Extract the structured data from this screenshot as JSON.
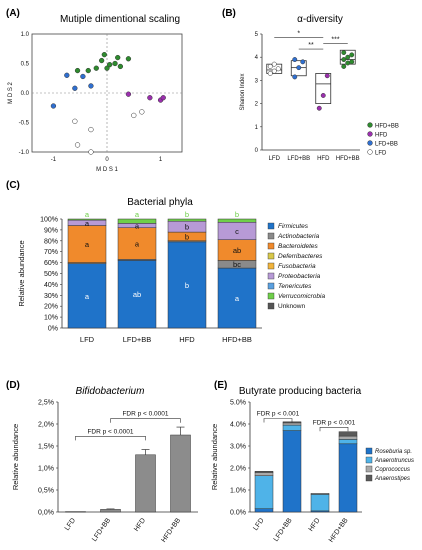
{
  "panels": {
    "A": {
      "label": "(A)",
      "title": "Mutiple dimentional scaling"
    },
    "B": {
      "label": "(B)",
      "title": "α-diversity"
    },
    "C": {
      "label": "(C)",
      "title": "Bacterial phyla"
    },
    "D": {
      "label": "(D)",
      "title": "Bifidobacterium"
    },
    "E": {
      "label": "(E)",
      "title": "Butyrate producing bacteria"
    }
  },
  "colors": {
    "green": "#2e8b2e",
    "purple": "#9b2fae",
    "blue": "#2f6fd0",
    "white": "#ffffff",
    "firmicutes": "#1f73c9",
    "actinobacteria": "#8a8a8a",
    "bacteroidetes": "#f08a2c",
    "deferribacteres": "#d8c84a",
    "fusobacteria": "#f1b43c",
    "proteobacteria": "#b79ad6",
    "tenericutes": "#5aa0e0",
    "verrucomicrobia": "#6fcf4a",
    "unknown": "#555555",
    "bar_grey": "#8c8c8c",
    "roseburia": "#1f73c9",
    "anaerotruncus": "#4fb3e8",
    "coprococcus": "#a9a9a9",
    "anaerostipes": "#5a5a5a"
  },
  "chart_data": [
    {
      "id": "A",
      "type": "scatter",
      "xlabel": "M D S 1",
      "ylabel": "M D S 2",
      "xlim": [
        -1.4,
        1.4
      ],
      "ylim": [
        -1.0,
        1.0
      ],
      "xticks": [
        "-1",
        "0",
        "1"
      ],
      "yticks": [
        "1.0",
        "0.5",
        "0.0",
        "-0.5",
        "-1.0"
      ],
      "series": [
        {
          "group": "HFD+BB",
          "color": "green",
          "points": [
            [
              -0.35,
              0.38
            ],
            [
              -0.2,
              0.42
            ],
            [
              -0.1,
              0.55
            ],
            [
              0.0,
              0.42
            ],
            [
              0.05,
              0.48
            ],
            [
              0.2,
              0.6
            ],
            [
              0.4,
              0.58
            ],
            [
              0.25,
              0.45
            ],
            [
              -0.55,
              0.38
            ],
            [
              -0.05,
              0.65
            ],
            [
              0.15,
              0.5
            ]
          ]
        },
        {
          "group": "HFD",
          "color": "purple",
          "points": [
            [
              0.4,
              -0.02
            ],
            [
              0.8,
              -0.08
            ],
            [
              1.0,
              -0.12
            ],
            [
              1.05,
              -0.08
            ]
          ]
        },
        {
          "group": "LFD+BB",
          "color": "blue",
          "points": [
            [
              -1.0,
              -0.22
            ],
            [
              -0.6,
              0.08
            ],
            [
              -0.75,
              0.3
            ],
            [
              -0.45,
              0.28
            ],
            [
              -0.3,
              0.12
            ]
          ]
        },
        {
          "group": "LFD",
          "color": "white",
          "points": [
            [
              -0.6,
              -0.48
            ],
            [
              -0.55,
              -0.88
            ],
            [
              -0.3,
              -1.0
            ],
            [
              -0.3,
              -0.62
            ],
            [
              0.5,
              -0.38
            ],
            [
              0.65,
              -0.32
            ]
          ]
        }
      ]
    },
    {
      "id": "B",
      "type": "box",
      "ylabel": "Shanon Index",
      "ylim": [
        0,
        5
      ],
      "yticks": [
        "0",
        "1",
        "2",
        "3",
        "4",
        "5"
      ],
      "categories": [
        "LFD",
        "LFD+BB",
        "HFD",
        "HFD+BB"
      ],
      "boxes": [
        {
          "cat": "LFD",
          "color": "white",
          "q1": 3.3,
          "median": 3.45,
          "q3": 3.7,
          "points": [
            3.3,
            3.4,
            3.5,
            3.6,
            3.7
          ]
        },
        {
          "cat": "LFD+BB",
          "color": "blue",
          "q1": 3.2,
          "median": 3.55,
          "q3": 3.85,
          "points": [
            3.15,
            3.55,
            3.8,
            3.9
          ]
        },
        {
          "cat": "HFD",
          "color": "purple",
          "q1": 2.0,
          "median": 2.85,
          "q3": 3.3,
          "points": [
            1.8,
            2.35,
            3.2
          ]
        },
        {
          "cat": "HFD+BB",
          "color": "green",
          "q1": 3.7,
          "median": 3.9,
          "q3": 4.3,
          "points": [
            3.6,
            3.75,
            3.8,
            3.9,
            4.0,
            4.1,
            4.2
          ]
        }
      ],
      "significance": [
        {
          "from": "LFD",
          "to": "HFD",
          "label": "*"
        },
        {
          "from": "LFD+BB",
          "to": "HFD",
          "label": "**"
        },
        {
          "from": "HFD",
          "to": "HFD+BB",
          "label": "***"
        }
      ],
      "legend": [
        {
          "label": "HFD+BB",
          "color": "green"
        },
        {
          "label": "HFD",
          "color": "purple"
        },
        {
          "label": "LFD+BB",
          "color": "blue"
        },
        {
          "label": "LFD",
          "color": "white"
        }
      ]
    },
    {
      "id": "C",
      "type": "bar",
      "stacked": true,
      "ylabel": "Relative abundance",
      "ylim": [
        0,
        100
      ],
      "yticks": [
        "0%",
        "10%",
        "20%",
        "30%",
        "40%",
        "50%",
        "60%",
        "70%",
        "80%",
        "90%",
        "100%"
      ],
      "categories": [
        "LFD",
        "LFD+BB",
        "HFD",
        "HFD+BB"
      ],
      "series": [
        {
          "name": "Firmicutes",
          "color": "firmicutes",
          "values": [
            59,
            62,
            79,
            55
          ],
          "labels": [
            "a",
            "ab",
            "b",
            "a"
          ]
        },
        {
          "name": "Actinobacteria",
          "color": "actinobacteria",
          "values": [
            1,
            1,
            1,
            7
          ],
          "labels": [
            "",
            "",
            "",
            "bc"
          ]
        },
        {
          "name": "Bacteroidetes",
          "color": "bacteroidetes",
          "values": [
            34,
            29,
            8,
            19
          ],
          "labels": [
            "a",
            "a",
            "b",
            "ab"
          ]
        },
        {
          "name": "Deferribacteres",
          "color": "deferribacteres",
          "values": [
            0,
            0,
            0,
            0
          ],
          "labels": [
            "",
            "",
            "",
            ""
          ]
        },
        {
          "name": "Fusobacteria",
          "color": "fusobacteria",
          "values": [
            0,
            0,
            0,
            0
          ],
          "labels": [
            "",
            "",
            "",
            ""
          ]
        },
        {
          "name": "Proteobacteria",
          "color": "proteobacteria",
          "values": [
            5,
            4,
            10,
            16
          ],
          "labels": [
            "a",
            "a",
            "b",
            "c"
          ]
        },
        {
          "name": "Tenericutes",
          "color": "tenericutes",
          "values": [
            0,
            0,
            0,
            0
          ],
          "labels": [
            "",
            "",
            "",
            ""
          ]
        },
        {
          "name": "Verrucomicrobia",
          "color": "verrucomicrobia",
          "values": [
            1,
            4,
            2,
            3
          ],
          "labels": [
            "a",
            "a",
            "b",
            "b"
          ]
        },
        {
          "name": "Unknown",
          "color": "unknown",
          "values": [
            0,
            0,
            0,
            0
          ],
          "labels": [
            "",
            "",
            "",
            ""
          ]
        }
      ]
    },
    {
      "id": "D",
      "type": "bar",
      "ylabel": "Relative abundance",
      "ylim": [
        0,
        2.5
      ],
      "yticks": [
        "0,0%",
        "0,5%",
        "1,0%",
        "1,5%",
        "2,0%",
        "2,5%"
      ],
      "categories": [
        "LFD",
        "LFD+BB",
        "HFD",
        "HFD+BB"
      ],
      "values": [
        0.01,
        0.06,
        1.3,
        1.75
      ],
      "errors": [
        0.0,
        0.01,
        0.12,
        0.18
      ],
      "annotations": [
        {
          "from": "LFD",
          "to": "HFD",
          "label": "FDR p < 0.0001"
        },
        {
          "from": "LFD+BB",
          "to": "HFD+BB",
          "label": "FDR p < 0.0001"
        }
      ]
    },
    {
      "id": "E",
      "type": "bar",
      "stacked": true,
      "ylabel": "Relative abundance",
      "ylim": [
        0,
        5
      ],
      "yticks": [
        "0.0%",
        "1.0%",
        "2.0%",
        "3.0%",
        "4.0%",
        "5.0%"
      ],
      "categories": [
        "LFD",
        "LFD+BB",
        "HFD",
        "HFD+BB"
      ],
      "series": [
        {
          "name": "Roseburia sp.",
          "color": "roseburia",
          "values": [
            0.15,
            3.7,
            0.05,
            3.1
          ]
        },
        {
          "name": "Anaerotruncus",
          "color": "anaerotruncus",
          "values": [
            1.5,
            0.25,
            0.75,
            0.2
          ]
        },
        {
          "name": "Coprococcus",
          "color": "coprococcus",
          "values": [
            0.15,
            0.1,
            0.05,
            0.15
          ]
        },
        {
          "name": "Anaerostipes",
          "color": "anaerostipes",
          "values": [
            0.05,
            0.05,
            0.0,
            0.2
          ]
        }
      ],
      "annotations": [
        {
          "from": "LFD",
          "to": "LFD+BB",
          "label": "FDR p < 0.001"
        },
        {
          "from": "HFD",
          "to": "HFD+BB",
          "label": "FDR p < 0.001"
        }
      ]
    }
  ]
}
